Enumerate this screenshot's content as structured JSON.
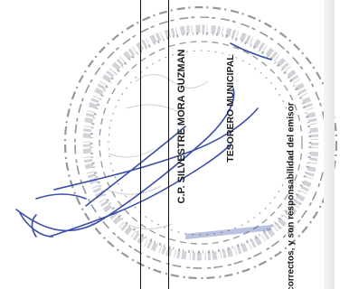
{
  "document": {
    "signatory_name": "C.P. SILVESTRE MORA GUZMAN",
    "signatory_title": "TESORERO MUNICIPAL",
    "disclaimer_fragment": "te correctos, y son responsabilidad del emisor"
  },
  "seal": {
    "ink_color": "#7d7f8a"
  },
  "signature": {
    "ink_color": "#3b4ea8"
  }
}
